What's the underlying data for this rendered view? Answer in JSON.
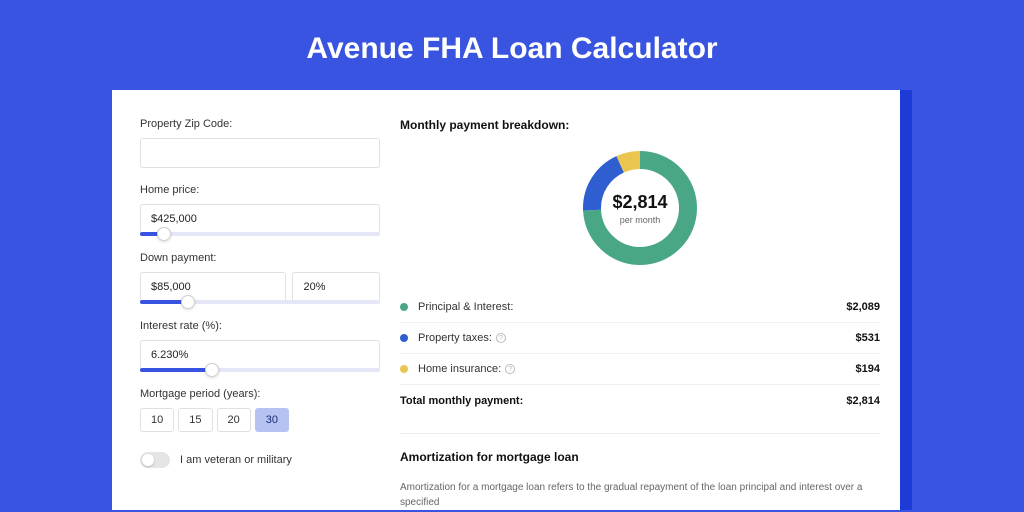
{
  "page": {
    "title": "Avenue FHA Loan Calculator",
    "background_color": "#3854e0",
    "card_shadow_color": "#1d3bd6"
  },
  "form": {
    "zip": {
      "label": "Property Zip Code:",
      "value": ""
    },
    "home_price": {
      "label": "Home price:",
      "value": "$425,000",
      "slider_pct": 10
    },
    "down_payment": {
      "label": "Down payment:",
      "amount": "$85,000",
      "percent": "20%",
      "slider_pct": 20
    },
    "interest_rate": {
      "label": "Interest rate (%):",
      "value": "6.230%",
      "slider_pct": 30
    },
    "mortgage_period": {
      "label": "Mortgage period (years):",
      "options": [
        "10",
        "15",
        "20",
        "30"
      ],
      "active_index": 3
    },
    "veteran": {
      "label": "I am veteran or military",
      "checked": false
    }
  },
  "breakdown": {
    "title": "Monthly payment breakdown:",
    "donut": {
      "total_value": "$2,814",
      "sub_label": "per month",
      "slices": [
        {
          "color": "#4aa785",
          "start": 0,
          "sweep": 267
        },
        {
          "color": "#2f5ed0",
          "start": 267,
          "sweep": 68
        },
        {
          "color": "#eac54f",
          "start": 335,
          "sweep": 25
        }
      ],
      "stroke_width": 18
    },
    "items": [
      {
        "dot_color": "#4aa785",
        "label": "Principal & Interest:",
        "value": "$2,089",
        "info": false
      },
      {
        "dot_color": "#2f5ed0",
        "label": "Property taxes:",
        "value": "$531",
        "info": true
      },
      {
        "dot_color": "#eac54f",
        "label": "Home insurance:",
        "value": "$194",
        "info": true
      }
    ],
    "total": {
      "label": "Total monthly payment:",
      "value": "$2,814"
    }
  },
  "amortization": {
    "title": "Amortization for mortgage loan",
    "text": "Amortization for a mortgage loan refers to the gradual repayment of the loan principal and interest over a specified"
  }
}
